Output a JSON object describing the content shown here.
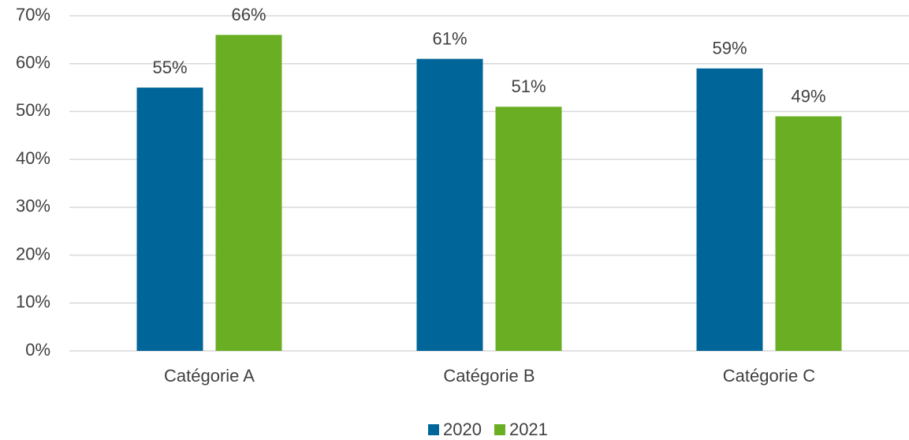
{
  "chart_data": {
    "type": "bar",
    "categories": [
      "Catégorie A",
      "Catégorie B",
      "Catégorie C"
    ],
    "series": [
      {
        "name": "2020",
        "color": "#006699",
        "values": [
          55,
          61,
          59
        ],
        "value_labels": [
          "55%",
          "61%",
          "59%"
        ]
      },
      {
        "name": "2021",
        "color": "#6aaf23",
        "values": [
          66,
          51,
          49
        ],
        "value_labels": [
          "66%",
          "51%",
          "49%"
        ]
      }
    ],
    "ylim": [
      0,
      70
    ],
    "yticks": [
      {
        "value": 0,
        "label": "0%"
      },
      {
        "value": 10,
        "label": "10%"
      },
      {
        "value": 20,
        "label": "20%"
      },
      {
        "value": 30,
        "label": "30%"
      },
      {
        "value": 40,
        "label": "40%"
      },
      {
        "value": 50,
        "label": "50%"
      },
      {
        "value": 60,
        "label": "60%"
      },
      {
        "value": 70,
        "label": "70%"
      }
    ],
    "grid": true,
    "legend": "bottom"
  }
}
